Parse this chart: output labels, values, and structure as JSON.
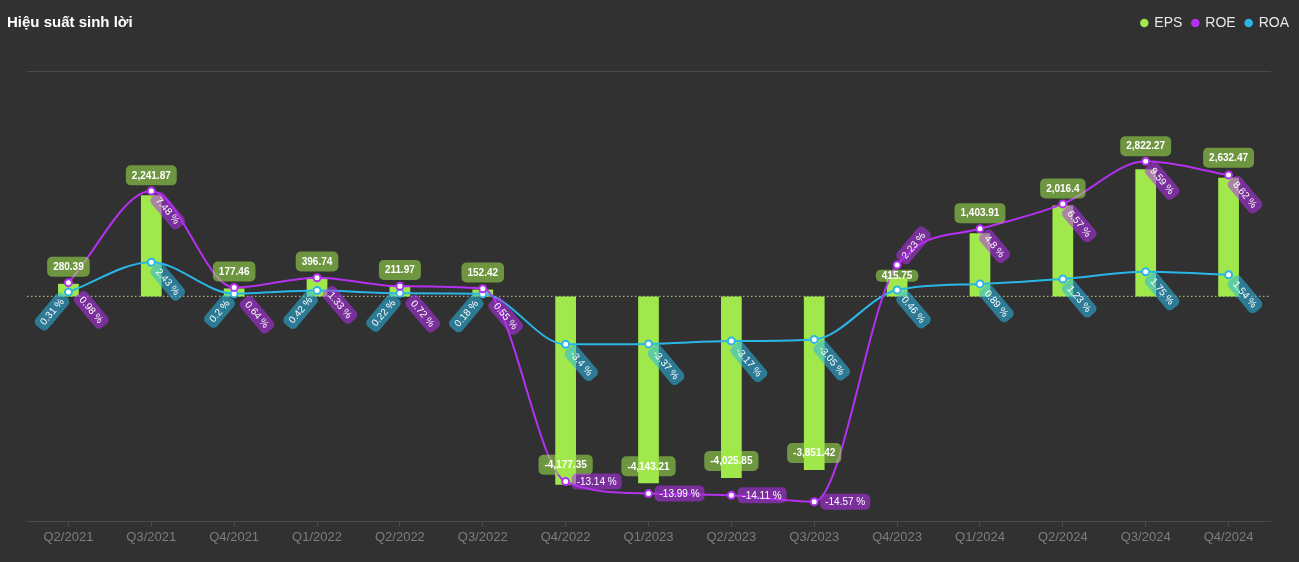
{
  "chart_data": {
    "type": "bar",
    "title": "Hiệu suất sinh lời",
    "categories": [
      "Q2/2021",
      "Q3/2021",
      "Q4/2021",
      "Q1/2022",
      "Q2/2022",
      "Q3/2022",
      "Q4/2022",
      "Q1/2023",
      "Q2/2023",
      "Q3/2023",
      "Q4/2023",
      "Q1/2024",
      "Q2/2024",
      "Q3/2024",
      "Q4/2024"
    ],
    "series": [
      {
        "name": "EPS",
        "type": "bar",
        "color": "#a0e84b",
        "values": [
          280.39,
          2241.87,
          177.46,
          396.74,
          211.97,
          152.42,
          -4177.35,
          -4143.21,
          -4025.85,
          -3851.42,
          415.75,
          1403.91,
          2016.4,
          2822.27,
          2632.47
        ],
        "value_labels": [
          "280.39",
          "2,241.87",
          "177.46",
          "396.74",
          "211.97",
          "152.42",
          "-4,177.35",
          "-4,143.21",
          "-4,025.85",
          "-3,851.42",
          "415.75",
          "1,403.91",
          "2,016.4",
          "2,822.27",
          "2,632.47"
        ]
      },
      {
        "name": "ROE",
        "type": "line",
        "axis": "y2",
        "color": "#b530f0",
        "values": [
          0.98,
          7.48,
          0.64,
          1.33,
          0.72,
          0.55,
          -13.14,
          -13.99,
          -14.11,
          -14.57,
          2.23,
          4.8,
          6.57,
          9.59,
          8.62
        ],
        "value_labels": [
          "0.98 %",
          "7.48 %",
          "0.64 %",
          "1.33 %",
          "0.72 %",
          "0.55 %",
          "-13.14 %",
          "-13.99 %",
          "-14.11 %",
          "-14.57 %",
          "2.23 %",
          "4.8 %",
          "6.57 %",
          "9.59 %",
          "8.62 %"
        ]
      },
      {
        "name": "ROA",
        "type": "line",
        "axis": "y2",
        "color": "#2ab6e8",
        "values": [
          0.31,
          2.43,
          0.2,
          0.42,
          0.22,
          0.18,
          -3.4,
          -3.37,
          -3.17,
          -3.05,
          0.46,
          0.89,
          1.23,
          1.75,
          1.54
        ],
        "value_labels": [
          "0.31 %",
          "2.43 %",
          "0.2 %",
          "0.42 %",
          "0.22 %",
          "0.18 %",
          "-3.4 %",
          "-3.37 %",
          "-3.17 %",
          "-3.05 %",
          "0.46 %",
          "0.89 %",
          "1.23 %",
          "1.75 %",
          "1.54 %"
        ]
      }
    ],
    "ylim": [
      -5000,
      5000
    ],
    "y2lim": [
      -16,
      16
    ],
    "tick_labels": "x",
    "legend": "top right",
    "marker": "circle",
    "ref_lines": [
      {
        "axis": "y",
        "value": 0,
        "color": "#a3b36a",
        "line_style": "dotted"
      }
    ]
  }
}
